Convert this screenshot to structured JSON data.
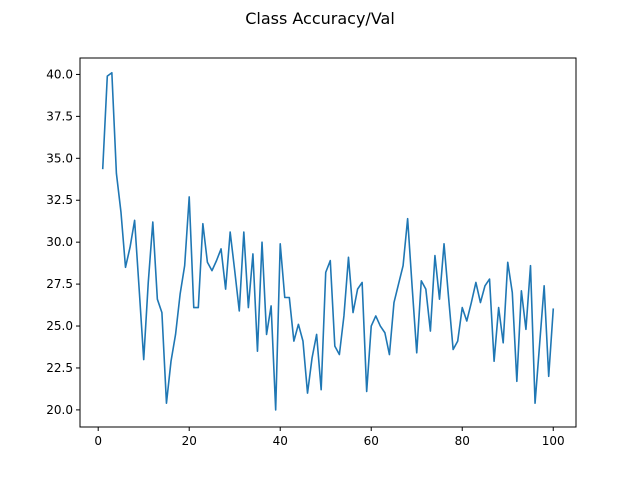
{
  "chart_data": {
    "type": "line",
    "title": "Class Accuracy/Val",
    "xlabel": "",
    "ylabel": "",
    "xlim": [
      -4,
      105
    ],
    "ylim": [
      18.98,
      40.98
    ],
    "x_ticks": [
      0,
      20,
      40,
      60,
      80,
      100
    ],
    "y_ticks": [
      20.0,
      22.5,
      25.0,
      27.5,
      30.0,
      32.5,
      35.0,
      37.5,
      40.0
    ],
    "x_tick_labels": [
      "0",
      "20",
      "40",
      "60",
      "80",
      "100"
    ],
    "y_tick_labels": [
      "20.0",
      "22.5",
      "25.0",
      "27.5",
      "30.0",
      "32.5",
      "35.0",
      "37.5",
      "40.0"
    ],
    "grid": false,
    "color": "#1f77b4",
    "series": [
      {
        "x": [
          1,
          2,
          3,
          4,
          5,
          6,
          7,
          8,
          9,
          10,
          11,
          12,
          13,
          14,
          15,
          16,
          17,
          18,
          19,
          20,
          21,
          22,
          23,
          24,
          25,
          26,
          27,
          28,
          29,
          30,
          31,
          32,
          33,
          34,
          35,
          36,
          37,
          38,
          39,
          40,
          41,
          42,
          43,
          44,
          45,
          46,
          47,
          48,
          49,
          50,
          51,
          52,
          53,
          54,
          55,
          56,
          57,
          58,
          59,
          60,
          61,
          62,
          63,
          64,
          65,
          66,
          67,
          68,
          69,
          70,
          71,
          72,
          73,
          74,
          75,
          76,
          77,
          78,
          79,
          80,
          81,
          82,
          83,
          84,
          85,
          86,
          87,
          88,
          89,
          90,
          91,
          92,
          93,
          94,
          95,
          96,
          97,
          98,
          99,
          100
        ],
        "y": [
          34.4,
          39.9,
          40.1,
          34.1,
          31.8,
          28.5,
          29.7,
          31.3,
          27.2,
          23.0,
          27.6,
          31.2,
          26.6,
          25.8,
          20.4,
          22.9,
          24.5,
          26.9,
          28.6,
          32.7,
          26.1,
          26.1,
          31.1,
          28.8,
          28.3,
          28.9,
          29.6,
          27.2,
          30.6,
          28.3,
          25.9,
          30.6,
          26.1,
          29.3,
          23.5,
          30.0,
          24.5,
          26.2,
          20.0,
          29.9,
          26.7,
          26.7,
          24.1,
          25.1,
          24.1,
          21.0,
          23.1,
          24.5,
          21.2,
          28.2,
          28.9,
          23.8,
          23.3,
          25.6,
          29.1,
          25.8,
          27.2,
          27.6,
          21.1,
          25.0,
          25.6,
          25.0,
          24.6,
          23.3,
          26.4,
          27.5,
          28.6,
          31.4,
          27.3,
          23.4,
          27.7,
          27.2,
          24.7,
          29.2,
          26.6,
          29.9,
          26.7,
          23.6,
          24.1,
          26.1,
          25.3,
          26.4,
          27.6,
          26.4,
          27.4,
          27.8,
          22.9,
          26.1,
          24.0,
          28.8,
          27.0,
          21.7,
          27.1,
          24.8,
          28.6,
          20.4,
          23.9,
          27.4,
          22.0,
          26.0
        ]
      }
    ]
  }
}
